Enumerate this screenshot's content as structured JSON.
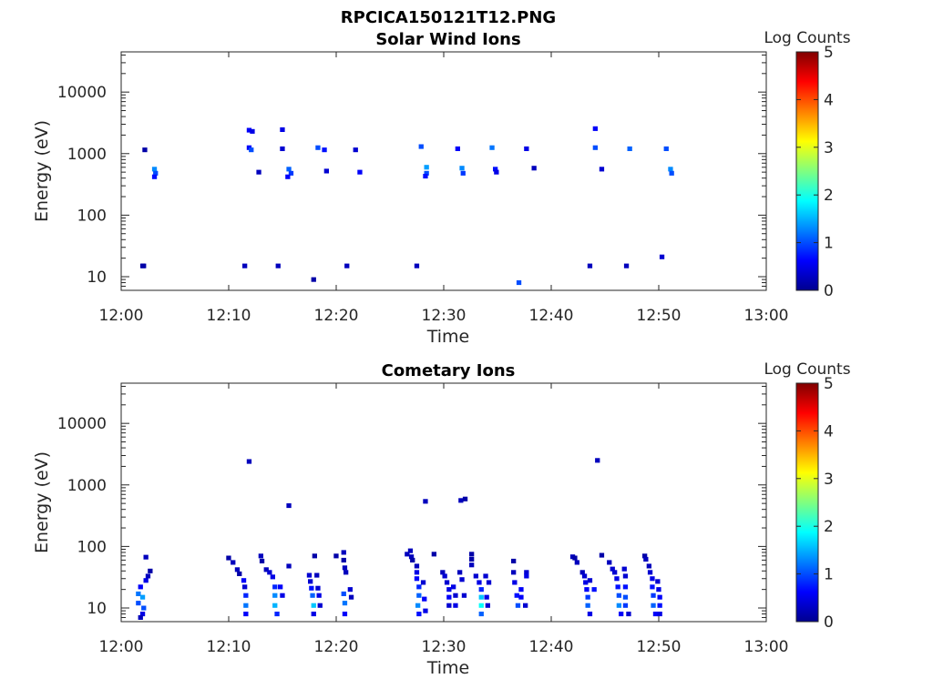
{
  "figure_title": "RPCICA150121T12.PNG",
  "colorbar": {
    "label": "Log Counts",
    "ticks": [
      "0",
      "1",
      "2",
      "3",
      "4",
      "5"
    ],
    "range": [
      0,
      5
    ]
  },
  "chart_data": [
    {
      "type": "heatmap",
      "title": "Solar Wind Ions",
      "xlabel": "Time",
      "ylabel": "Energy (eV)",
      "x_ticks": [
        "12:00",
        "12:10",
        "12:20",
        "12:30",
        "12:40",
        "12:50",
        "13:00"
      ],
      "xlim_minutes": [
        0,
        60
      ],
      "y_scale": "log",
      "y_ticks": [
        "10",
        "100",
        "1000",
        "10000"
      ],
      "ylim": [
        6,
        45000
      ],
      "cells": [
        [
          2.0,
          15,
          0.2
        ],
        [
          2.1,
          15,
          0.2
        ],
        [
          2.2,
          1150,
          0.2
        ],
        [
          3.1,
          560,
          1.3
        ],
        [
          3.2,
          480,
          1.0
        ],
        [
          3.1,
          420,
          0.7
        ],
        [
          11.5,
          15,
          0.3
        ],
        [
          11.9,
          2400,
          0.6
        ],
        [
          12.2,
          2300,
          0.5
        ],
        [
          11.9,
          1250,
          0.6
        ],
        [
          12.1,
          1150,
          1.0
        ],
        [
          12.8,
          500,
          0.3
        ],
        [
          14.6,
          15,
          0.3
        ],
        [
          15.0,
          2450,
          0.5
        ],
        [
          15.0,
          1200,
          0.4
        ],
        [
          15.6,
          560,
          1.1
        ],
        [
          15.8,
          480,
          0.9
        ],
        [
          15.5,
          420,
          0.6
        ],
        [
          17.9,
          9,
          0.2
        ],
        [
          18.3,
          1250,
          1.0
        ],
        [
          18.9,
          1150,
          0.7
        ],
        [
          19.1,
          520,
          0.4
        ],
        [
          21.0,
          15,
          0.3
        ],
        [
          21.8,
          1150,
          0.4
        ],
        [
          22.2,
          500,
          0.6
        ],
        [
          27.5,
          15,
          0.3
        ],
        [
          27.9,
          1300,
          1.0
        ],
        [
          28.4,
          600,
          1.4
        ],
        [
          28.4,
          480,
          1.0
        ],
        [
          28.3,
          430,
          0.7
        ],
        [
          31.3,
          1200,
          0.6
        ],
        [
          31.7,
          580,
          1.3
        ],
        [
          31.8,
          480,
          0.9
        ],
        [
          34.5,
          1250,
          1.2
        ],
        [
          34.8,
          560,
          0.7
        ],
        [
          34.9,
          500,
          0.5
        ],
        [
          37.0,
          8,
          1.0
        ],
        [
          37.7,
          1200,
          0.5
        ],
        [
          38.4,
          580,
          0.3
        ],
        [
          43.6,
          15,
          0.3
        ],
        [
          44.1,
          2550,
          0.6
        ],
        [
          44.1,
          1250,
          1.0
        ],
        [
          44.7,
          560,
          0.4
        ],
        [
          47.0,
          15,
          0.3
        ],
        [
          47.3,
          1200,
          1.1
        ],
        [
          50.3,
          21,
          0.4
        ],
        [
          50.7,
          1200,
          1.0
        ],
        [
          51.1,
          560,
          1.3
        ],
        [
          51.2,
          480,
          1.0
        ]
      ]
    },
    {
      "type": "heatmap",
      "title": "Cometary Ions",
      "xlabel": "Time",
      "ylabel": "Energy (eV)",
      "x_ticks": [
        "12:00",
        "12:10",
        "12:20",
        "12:30",
        "12:40",
        "12:50",
        "13:00"
      ],
      "xlim_minutes": [
        0,
        60
      ],
      "y_scale": "log",
      "y_ticks": [
        "10",
        "100",
        "1000",
        "10000"
      ],
      "ylim": [
        6,
        45000
      ],
      "cells": [
        [
          1.6,
          17,
          1.2
        ],
        [
          1.6,
          12,
          1.0
        ],
        [
          1.8,
          22,
          0.6
        ],
        [
          2.0,
          15,
          1.4
        ],
        [
          2.1,
          10,
          1.0
        ],
        [
          2.3,
          28,
          0.5
        ],
        [
          2.5,
          33,
          0.3
        ],
        [
          2.7,
          40,
          0.2
        ],
        [
          2.3,
          67,
          0.3
        ],
        [
          2.0,
          8,
          0.5
        ],
        [
          1.8,
          7,
          0.3
        ],
        [
          10.0,
          65,
          0.2
        ],
        [
          10.4,
          55,
          0.3
        ],
        [
          10.8,
          42,
          0.3
        ],
        [
          11.0,
          36,
          0.2
        ],
        [
          11.4,
          28,
          0.6
        ],
        [
          11.5,
          22,
          0.4
        ],
        [
          11.6,
          16,
          0.8
        ],
        [
          11.6,
          11,
          1.2
        ],
        [
          11.6,
          8,
          0.6
        ],
        [
          11.9,
          2400,
          0.3
        ],
        [
          13.0,
          70,
          0.3
        ],
        [
          13.1,
          58,
          0.2
        ],
        [
          13.5,
          42,
          0.3
        ],
        [
          13.8,
          38,
          0.4
        ],
        [
          14.1,
          32,
          0.5
        ],
        [
          14.3,
          22,
          0.8
        ],
        [
          14.3,
          16,
          1.3
        ],
        [
          14.3,
          11,
          1.5
        ],
        [
          14.5,
          8,
          0.8
        ],
        [
          14.8,
          22,
          0.6
        ],
        [
          15.0,
          16,
          0.5
        ],
        [
          15.6,
          460,
          0.3
        ],
        [
          15.6,
          48,
          0.3
        ],
        [
          17.5,
          34,
          0.4
        ],
        [
          17.6,
          27,
          0.4
        ],
        [
          17.7,
          21,
          0.7
        ],
        [
          17.8,
          16,
          1.1
        ],
        [
          17.9,
          11,
          1.6
        ],
        [
          17.9,
          8,
          0.5
        ],
        [
          18.2,
          34,
          0.3
        ],
        [
          18.3,
          21,
          0.4
        ],
        [
          18.4,
          16,
          0.5
        ],
        [
          18.5,
          11,
          0.4
        ],
        [
          18.0,
          70,
          0.2
        ],
        [
          20.0,
          70,
          0.2
        ],
        [
          20.7,
          80,
          0.3
        ],
        [
          20.7,
          60,
          0.2
        ],
        [
          20.8,
          45,
          0.3
        ],
        [
          20.9,
          38,
          0.3
        ],
        [
          20.7,
          17,
          1.0
        ],
        [
          20.8,
          12,
          1.2
        ],
        [
          20.8,
          8,
          0.6
        ],
        [
          21.3,
          20,
          0.4
        ],
        [
          21.4,
          15,
          0.3
        ],
        [
          26.6,
          75,
          0.3
        ],
        [
          26.9,
          85,
          0.3
        ],
        [
          27.0,
          68,
          0.3
        ],
        [
          27.1,
          60,
          0.2
        ],
        [
          27.5,
          48,
          0.3
        ],
        [
          27.5,
          38,
          0.5
        ],
        [
          27.5,
          30,
          0.6
        ],
        [
          27.7,
          22,
          0.8
        ],
        [
          27.7,
          16,
          1.1
        ],
        [
          27.6,
          11,
          1.3
        ],
        [
          27.7,
          8,
          0.7
        ],
        [
          28.1,
          26,
          0.4
        ],
        [
          28.2,
          14,
          0.6
        ],
        [
          28.3,
          9,
          0.5
        ],
        [
          28.3,
          540,
          0.3
        ],
        [
          29.1,
          75,
          0.2
        ],
        [
          29.9,
          38,
          0.3
        ],
        [
          30.1,
          33,
          0.4
        ],
        [
          30.3,
          26,
          0.4
        ],
        [
          30.5,
          20,
          0.5
        ],
        [
          30.5,
          15,
          0.6
        ],
        [
          30.5,
          11,
          0.4
        ],
        [
          30.9,
          22,
          0.5
        ],
        [
          31.1,
          16,
          0.4
        ],
        [
          31.1,
          11,
          0.5
        ],
        [
          31.5,
          38,
          0.3
        ],
        [
          31.7,
          29,
          0.4
        ],
        [
          31.6,
          560,
          0.3
        ],
        [
          32.0,
          590,
          0.2
        ],
        [
          31.9,
          16,
          0.4
        ],
        [
          32.6,
          75,
          0.2
        ],
        [
          32.6,
          62,
          0.2
        ],
        [
          32.6,
          50,
          0.3
        ],
        [
          33.0,
          33,
          0.4
        ],
        [
          33.3,
          26,
          0.5
        ],
        [
          33.5,
          20,
          0.8
        ],
        [
          33.5,
          15,
          1.6
        ],
        [
          33.5,
          11,
          1.9
        ],
        [
          33.5,
          8,
          1.1
        ],
        [
          33.9,
          33,
          0.4
        ],
        [
          34.2,
          26,
          0.4
        ],
        [
          34.0,
          15,
          0.5
        ],
        [
          34.1,
          11,
          0.4
        ],
        [
          36.5,
          58,
          0.2
        ],
        [
          36.5,
          38,
          0.3
        ],
        [
          36.6,
          26,
          0.5
        ],
        [
          36.8,
          16,
          0.7
        ],
        [
          36.9,
          11,
          1.0
        ],
        [
          37.2,
          20,
          0.6
        ],
        [
          37.2,
          15,
          0.6
        ],
        [
          37.7,
          38,
          0.4
        ],
        [
          37.7,
          33,
          0.5
        ],
        [
          37.6,
          11,
          0.4
        ],
        [
          42.0,
          68,
          0.3
        ],
        [
          42.2,
          65,
          0.2
        ],
        [
          42.4,
          55,
          0.3
        ],
        [
          42.9,
          38,
          0.3
        ],
        [
          43.1,
          33,
          0.4
        ],
        [
          43.2,
          26,
          0.5
        ],
        [
          43.3,
          20,
          0.6
        ],
        [
          43.4,
          15,
          0.9
        ],
        [
          43.4,
          11,
          1.1
        ],
        [
          43.6,
          8,
          0.5
        ],
        [
          43.6,
          28,
          0.4
        ],
        [
          44.0,
          20,
          0.7
        ],
        [
          44.3,
          2500,
          0.3
        ],
        [
          44.7,
          72,
          0.2
        ],
        [
          45.4,
          55,
          0.3
        ],
        [
          45.7,
          43,
          0.4
        ],
        [
          45.9,
          38,
          0.4
        ],
        [
          46.1,
          30,
          0.5
        ],
        [
          46.2,
          22,
          0.7
        ],
        [
          46.3,
          16,
          1.0
        ],
        [
          46.3,
          11,
          1.3
        ],
        [
          46.5,
          8,
          0.6
        ],
        [
          46.8,
          43,
          0.4
        ],
        [
          46.9,
          33,
          0.4
        ],
        [
          46.9,
          22,
          0.7
        ],
        [
          46.9,
          15,
          1.0
        ],
        [
          46.9,
          11,
          0.9
        ],
        [
          47.2,
          8,
          0.4
        ],
        [
          48.7,
          70,
          0.2
        ],
        [
          48.8,
          62,
          0.3
        ],
        [
          49.1,
          48,
          0.3
        ],
        [
          49.2,
          38,
          0.4
        ],
        [
          49.4,
          30,
          0.5
        ],
        [
          49.4,
          22,
          0.7
        ],
        [
          49.5,
          16,
          0.9
        ],
        [
          49.5,
          11,
          1.1
        ],
        [
          49.7,
          8,
          0.6
        ],
        [
          49.9,
          27,
          0.4
        ],
        [
          50.0,
          20,
          0.5
        ],
        [
          50.1,
          15,
          0.6
        ],
        [
          50.1,
          11,
          0.7
        ],
        [
          50.1,
          8,
          0.5
        ]
      ]
    }
  ]
}
